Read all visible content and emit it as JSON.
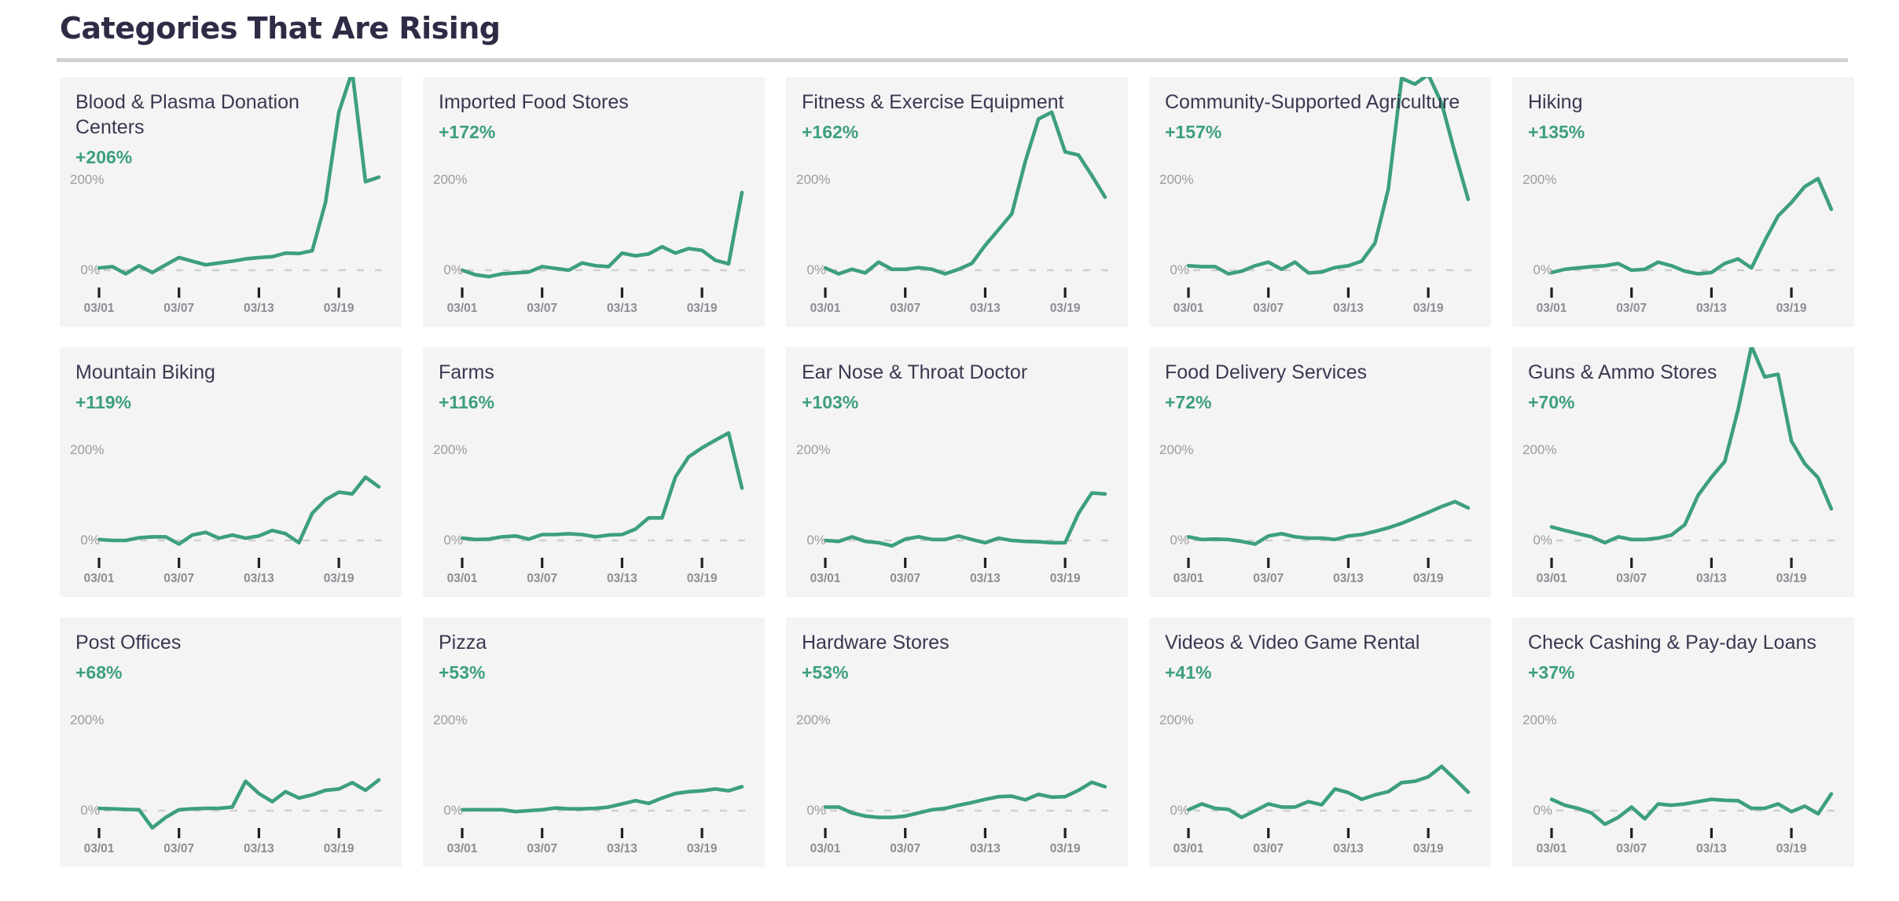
{
  "header": {
    "title": "Categories That Are Rising"
  },
  "axis": {
    "y_top_label": "200%",
    "y_zero_label": "0%",
    "x_ticks": [
      {
        "label": "03/01",
        "day": 0
      },
      {
        "label": "03/07",
        "day": 6
      },
      {
        "label": "03/13",
        "day": 12
      },
      {
        "label": "03/19",
        "day": 18
      }
    ],
    "days": 22,
    "zero_gridline": "dashed"
  },
  "colors": {
    "line": "#3d9f7d",
    "change_text": "#3d9f7d",
    "card_bg": "#f4f4f5",
    "card_title_text": "#3a3850",
    "header_text": "#2e2c45",
    "axis_label_text": "#9b9b9f",
    "date_text": "#8c8c92",
    "tick_mark": "#1f1f1f",
    "gridline_dash": "#cfcfcf"
  },
  "chart_data": [
    {
      "type": "line",
      "title": "Blood & Plasma Donation Centers",
      "change_label": "+206%",
      "ylabels_shown": [
        "200%",
        "0%"
      ],
      "values": [
        5,
        8,
        -8,
        10,
        -5,
        12,
        28,
        20,
        12,
        16,
        20,
        25,
        28,
        30,
        38,
        37,
        43,
        150,
        350,
        440,
        196,
        206
      ]
    },
    {
      "type": "line",
      "title": "Imported Food Stores",
      "change_label": "+172%",
      "values": [
        0,
        -10,
        -14,
        -8,
        -6,
        -4,
        8,
        4,
        0,
        16,
        10,
        8,
        38,
        32,
        36,
        52,
        38,
        48,
        44,
        22,
        14,
        172
      ]
    },
    {
      "type": "line",
      "title": "Fitness & Exercise Equipment",
      "change_label": "+162%",
      "values": [
        5,
        -8,
        2,
        -6,
        18,
        2,
        2,
        6,
        2,
        -8,
        2,
        15,
        55,
        90,
        125,
        240,
        335,
        350,
        262,
        255,
        210,
        162
      ]
    },
    {
      "type": "line",
      "title": "Community-Supported Agriculture",
      "change_label": "+157%",
      "values": [
        10,
        8,
        8,
        -8,
        -2,
        10,
        18,
        2,
        18,
        -6,
        -4,
        6,
        10,
        20,
        60,
        180,
        425,
        412,
        433,
        370,
        260,
        157
      ]
    },
    {
      "type": "line",
      "title": "Hiking",
      "change_label": "+135%",
      "values": [
        -5,
        2,
        5,
        8,
        10,
        15,
        0,
        2,
        18,
        10,
        -2,
        -8,
        -5,
        15,
        25,
        5,
        65,
        120,
        150,
        185,
        203,
        135
      ]
    },
    {
      "type": "line",
      "title": "Mountain Biking",
      "change_label": "+119%",
      "values": [
        2,
        0,
        0,
        6,
        8,
        8,
        -8,
        12,
        18,
        5,
        12,
        5,
        10,
        22,
        15,
        -5,
        60,
        90,
        107,
        103,
        140,
        119
      ]
    },
    {
      "type": "line",
      "title": "Farms",
      "change_label": "+116%",
      "values": [
        5,
        2,
        3,
        8,
        10,
        3,
        13,
        13,
        15,
        13,
        8,
        12,
        13,
        25,
        50,
        50,
        140,
        185,
        205,
        222,
        238,
        116
      ]
    },
    {
      "type": "line",
      "title": "Ear Nose & Throat Doctor",
      "change_label": "+103%",
      "values": [
        0,
        -2,
        8,
        -2,
        -5,
        -12,
        3,
        8,
        2,
        2,
        10,
        2,
        -5,
        5,
        0,
        -2,
        -3,
        -5,
        -5,
        60,
        105,
        103
      ]
    },
    {
      "type": "line",
      "title": "Food Delivery Services",
      "change_label": "+72%",
      "values": [
        8,
        2,
        3,
        2,
        -2,
        -8,
        10,
        15,
        8,
        5,
        5,
        2,
        10,
        13,
        20,
        28,
        38,
        50,
        62,
        75,
        86,
        72
      ]
    },
    {
      "type": "line",
      "title": "Guns & Ammo Stores",
      "change_label": "+70%",
      "values": [
        30,
        22,
        15,
        8,
        -5,
        8,
        2,
        2,
        5,
        12,
        35,
        100,
        140,
        175,
        290,
        430,
        362,
        368,
        220,
        170,
        139,
        70
      ]
    },
    {
      "type": "line",
      "title": "Post Offices",
      "change_label": "+68%",
      "values": [
        5,
        4,
        3,
        2,
        -38,
        -15,
        2,
        4,
        5,
        5,
        8,
        65,
        38,
        20,
        42,
        28,
        35,
        45,
        48,
        62,
        45,
        68
      ]
    },
    {
      "type": "line",
      "title": "Pizza",
      "change_label": "+53%",
      "values": [
        2,
        2,
        2,
        2,
        -2,
        0,
        2,
        6,
        4,
        4,
        5,
        8,
        15,
        22,
        16,
        28,
        38,
        42,
        44,
        48,
        44,
        53
      ]
    },
    {
      "type": "line",
      "title": "Hardware Stores",
      "change_label": "+53%",
      "values": [
        8,
        8,
        -5,
        -12,
        -15,
        -15,
        -12,
        -5,
        2,
        5,
        12,
        18,
        25,
        31,
        32,
        24,
        36,
        30,
        31,
        45,
        63,
        53
      ]
    },
    {
      "type": "line",
      "title": "Videos & Video Game Rental",
      "change_label": "+41%",
      "values": [
        2,
        15,
        5,
        3,
        -15,
        0,
        15,
        8,
        8,
        20,
        13,
        48,
        40,
        25,
        35,
        42,
        62,
        65,
        75,
        98,
        70,
        41
      ]
    },
    {
      "type": "line",
      "title": "Check Cashing & Pay-day Loans",
      "change_label": "+37%",
      "values": [
        25,
        12,
        5,
        -5,
        -30,
        -15,
        8,
        -18,
        15,
        12,
        15,
        20,
        25,
        23,
        22,
        5,
        5,
        15,
        -2,
        10,
        -7,
        37
      ]
    }
  ]
}
